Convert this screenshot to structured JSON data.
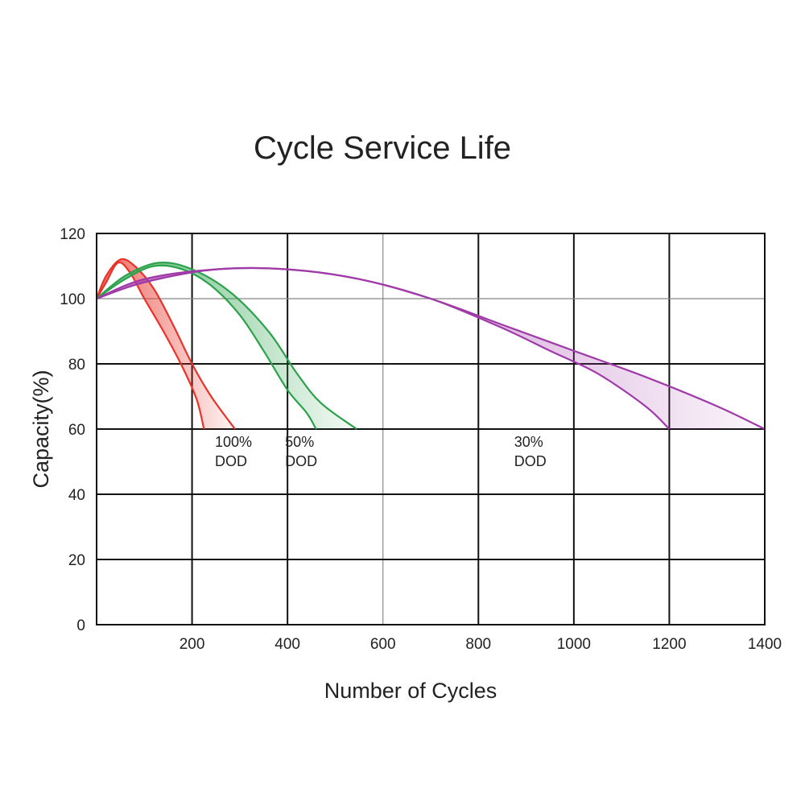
{
  "chart_data": {
    "type": "area",
    "title": "Cycle Service Life",
    "xlabel": "Number of Cycles",
    "ylabel": "Capacity(%)",
    "xlim": [
      0,
      1400
    ],
    "ylim": [
      0,
      120
    ],
    "x_ticks": [
      200,
      400,
      600,
      800,
      1000,
      1200,
      1400
    ],
    "y_ticks": [
      0,
      20,
      40,
      60,
      80,
      100,
      120
    ],
    "grid": true,
    "series": [
      {
        "name": "100% DOD",
        "label_lines": [
          "100%",
          "DOD"
        ],
        "label_at": [
          248,
          57
        ],
        "color": "#e8332a",
        "upper": [
          [
            0,
            100
          ],
          [
            20,
            107
          ],
          [
            50,
            112
          ],
          [
            80,
            110
          ],
          [
            120,
            103
          ],
          [
            160,
            92
          ],
          [
            200,
            80
          ],
          [
            240,
            70
          ],
          [
            290,
            60
          ]
        ],
        "lower": [
          [
            0,
            100
          ],
          [
            20,
            105
          ],
          [
            45,
            111
          ],
          [
            70,
            108
          ],
          [
            100,
            100
          ],
          [
            140,
            90
          ],
          [
            180,
            79
          ],
          [
            210,
            69
          ],
          [
            225,
            60
          ]
        ]
      },
      {
        "name": "50% DOD",
        "label_lines": [
          "50%",
          "DOD"
        ],
        "label_at": [
          395,
          57
        ],
        "color": "#2ca24c",
        "upper": [
          [
            0,
            100
          ],
          [
            60,
            107
          ],
          [
            130,
            111
          ],
          [
            200,
            109
          ],
          [
            280,
            102
          ],
          [
            360,
            90
          ],
          [
            420,
            77
          ],
          [
            470,
            68
          ],
          [
            545,
            60
          ]
        ],
        "lower": [
          [
            0,
            100
          ],
          [
            60,
            106
          ],
          [
            120,
            110
          ],
          [
            180,
            109
          ],
          [
            240,
            104
          ],
          [
            300,
            95
          ],
          [
            350,
            84
          ],
          [
            400,
            72
          ],
          [
            440,
            65
          ],
          [
            460,
            60
          ]
        ]
      },
      {
        "name": "30% DOD",
        "label_lines": [
          "30%",
          "DOD"
        ],
        "label_at": [
          875,
          57
        ],
        "color": "#a03aa8",
        "upper": [
          [
            0,
            100
          ],
          [
            100,
            106
          ],
          [
            250,
            109
          ],
          [
            400,
            109
          ],
          [
            550,
            106
          ],
          [
            700,
            100
          ],
          [
            850,
            92
          ],
          [
            1000,
            84
          ],
          [
            1150,
            76
          ],
          [
            1300,
            67
          ],
          [
            1400,
            60
          ]
        ],
        "lower": [
          [
            0,
            100
          ],
          [
            100,
            105
          ],
          [
            250,
            109
          ],
          [
            400,
            109
          ],
          [
            550,
            106
          ],
          [
            700,
            100
          ],
          [
            850,
            91
          ],
          [
            950,
            84
          ],
          [
            1050,
            77
          ],
          [
            1150,
            67
          ],
          [
            1200,
            60
          ]
        ]
      }
    ]
  }
}
